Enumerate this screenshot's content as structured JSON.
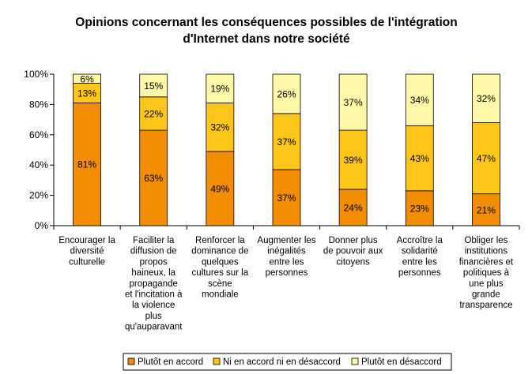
{
  "chart_data": {
    "type": "bar",
    "stacked": true,
    "title_lines": [
      "Opinions concernant les conséquences possibles de l'intégration",
      "d'Internet dans notre société"
    ],
    "categories": [
      [
        "Encourager la",
        "diversité",
        "culturelle"
      ],
      [
        "Faciliter la",
        "diffusion de",
        "propos",
        "haineux, la",
        "propagande",
        "et l'incitation à",
        "la violence",
        "plus",
        "qu'auparavant"
      ],
      [
        "Renforcer la",
        "dominance de",
        "quelques",
        "cultures sur la",
        "scène",
        "mondiale"
      ],
      [
        "Augmenter les",
        "inégalités",
        "entre les",
        "personnes"
      ],
      [
        "Donner plus",
        "de pouvoir aux",
        "citoyens"
      ],
      [
        "Accroître la",
        "solidarité",
        "entre les",
        "personnes"
      ],
      [
        "Obliger les",
        "institutions",
        "financières et",
        "politiques à",
        "une plus",
        "grande",
        "transparence"
      ]
    ],
    "series": [
      {
        "name": "Plutôt en accord",
        "values": [
          81,
          63,
          49,
          37,
          24,
          23,
          21
        ],
        "labels": [
          "81%",
          "63%",
          "49%",
          "37%",
          "24%",
          "23%",
          "21%"
        ],
        "color": "#F28C00"
      },
      {
        "name": "Ni en accord ni en désaccord",
        "values": [
          13,
          22,
          32,
          37,
          39,
          43,
          47
        ],
        "labels": [
          "13%",
          "22%",
          "32%",
          "37%",
          "39%",
          "43%",
          "47%"
        ],
        "color": "#FFC61A"
      },
      {
        "name": "Plutôt en désaccord",
        "values": [
          6,
          15,
          19,
          26,
          37,
          34,
          32
        ],
        "labels": [
          "6%",
          "15%",
          "19%",
          "26%",
          "37%",
          "34%",
          "32%"
        ],
        "color": "#FFF8A8"
      }
    ],
    "y_ticks": [
      "0%",
      "20%",
      "40%",
      "60%",
      "80%",
      "100%"
    ],
    "ylim": [
      0,
      100
    ],
    "grid": false,
    "legend": "bottom"
  }
}
